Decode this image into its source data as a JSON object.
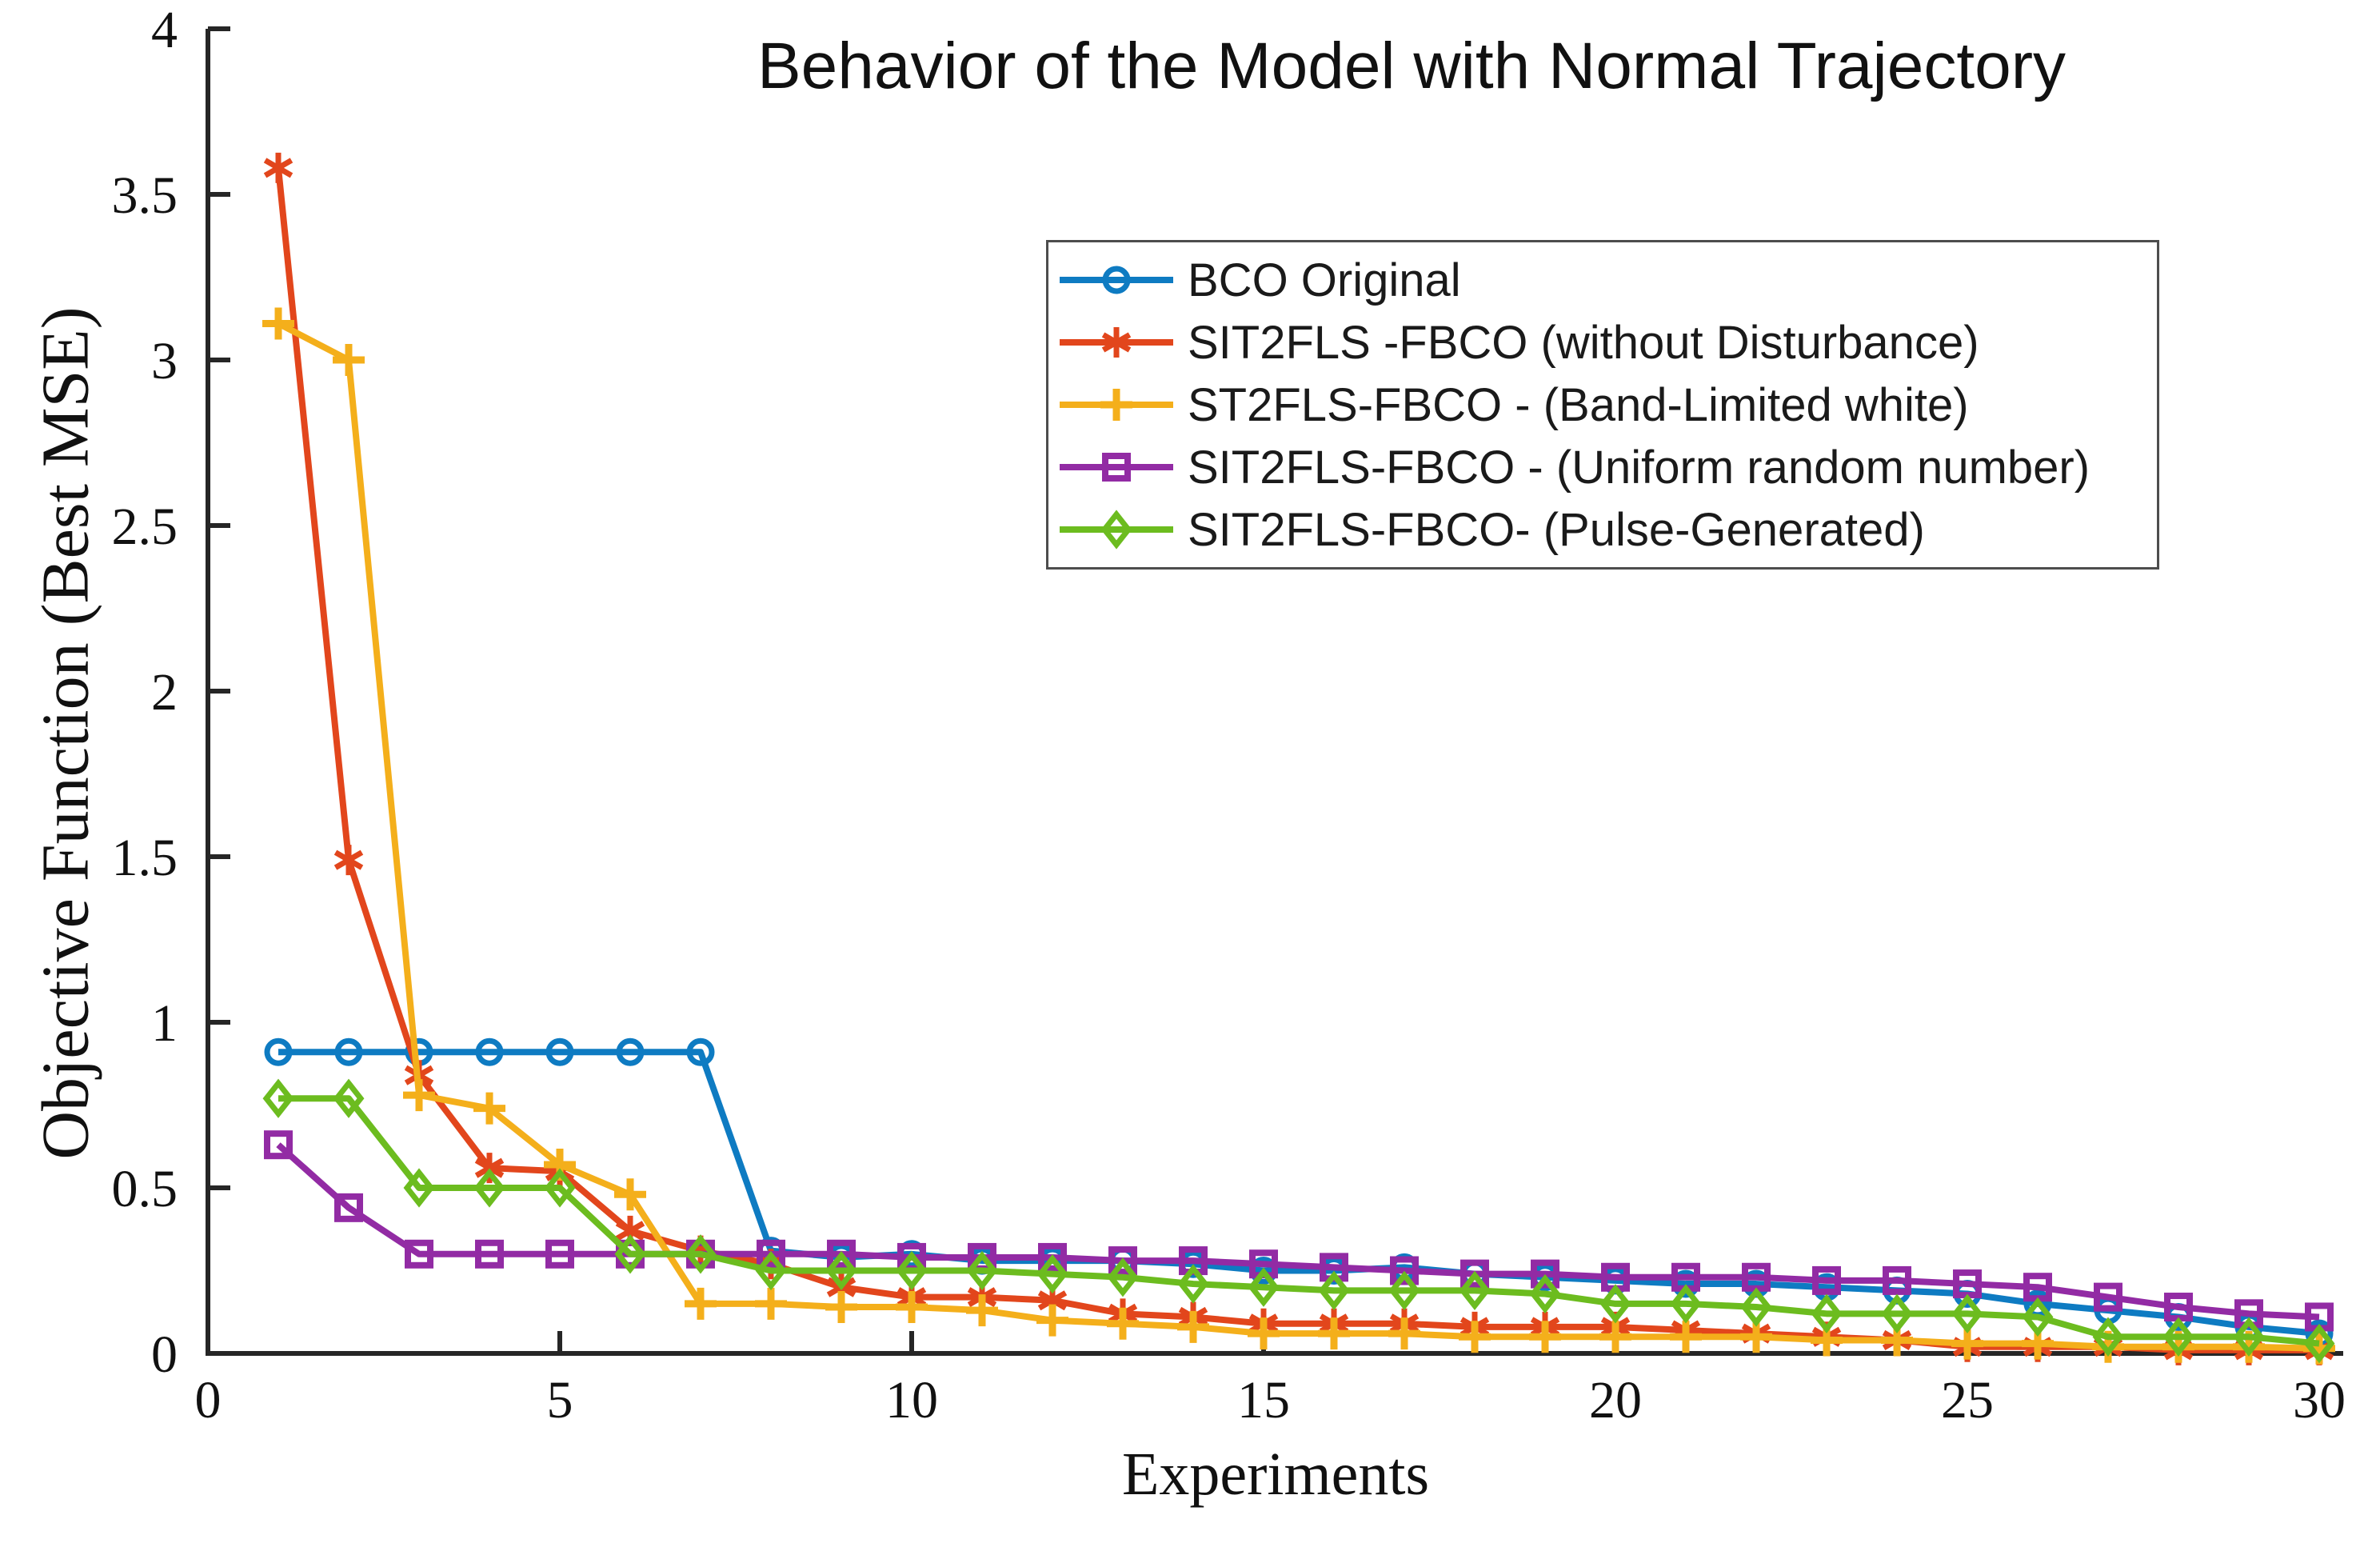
{
  "chart_data": {
    "type": "line",
    "title": "Behavior of the Model with Normal Trajectory",
    "xlabel": "Experiments",
    "ylabel": "Objective Function (Best MSE)",
    "xlim": [
      0,
      30
    ],
    "ylim": [
      0,
      4
    ],
    "x_ticks": [
      0,
      5,
      10,
      15,
      20,
      25,
      30
    ],
    "y_ticks": [
      0,
      0.5,
      1,
      1.5,
      2,
      2.5,
      3,
      3.5,
      4
    ],
    "grid": false,
    "legend_position": "upper-right-inside",
    "axis_color": "#262626",
    "x": [
      1,
      2,
      3,
      4,
      5,
      6,
      7,
      8,
      9,
      10,
      11,
      12,
      13,
      14,
      15,
      16,
      17,
      18,
      19,
      20,
      21,
      22,
      23,
      24,
      25,
      26,
      27,
      28,
      29,
      30
    ],
    "series": [
      {
        "name": "BCO Original",
        "color": "#0e7bc2",
        "marker": "circle",
        "values": [
          0.91,
          0.91,
          0.91,
          0.91,
          0.91,
          0.91,
          0.91,
          0.31,
          0.29,
          0.3,
          0.28,
          0.28,
          0.28,
          0.27,
          0.25,
          0.25,
          0.26,
          0.24,
          0.23,
          0.22,
          0.21,
          0.21,
          0.2,
          0.19,
          0.18,
          0.15,
          0.13,
          0.11,
          0.08,
          0.06
        ]
      },
      {
        "name": "SIT2FLS -FBCO (without Disturbance)",
        "color": "#e2461c",
        "marker": "asterisk",
        "values": [
          3.58,
          1.49,
          0.84,
          0.56,
          0.55,
          0.37,
          0.31,
          0.27,
          0.2,
          0.17,
          0.17,
          0.16,
          0.12,
          0.11,
          0.09,
          0.09,
          0.09,
          0.08,
          0.08,
          0.08,
          0.07,
          0.06,
          0.05,
          0.04,
          0.02,
          0.02,
          0.02,
          0.01,
          0.01,
          0.01
        ]
      },
      {
        "name": "ST2FLS-FBCO - (Band-Limited white)",
        "color": "#f4af1b",
        "marker": "plus",
        "values": [
          3.11,
          3.0,
          0.78,
          0.74,
          0.57,
          0.48,
          0.15,
          0.15,
          0.14,
          0.14,
          0.13,
          0.1,
          0.09,
          0.08,
          0.06,
          0.06,
          0.06,
          0.05,
          0.05,
          0.05,
          0.05,
          0.05,
          0.04,
          0.04,
          0.03,
          0.03,
          0.02,
          0.02,
          0.02,
          0.015
        ]
      },
      {
        "name": "SIT2FLS-FBCO - (Uniform random number)",
        "color": "#922ba4",
        "marker": "square",
        "values": [
          0.63,
          0.44,
          0.3,
          0.3,
          0.3,
          0.3,
          0.3,
          0.3,
          0.3,
          0.29,
          0.29,
          0.29,
          0.28,
          0.28,
          0.27,
          0.26,
          0.25,
          0.24,
          0.24,
          0.23,
          0.23,
          0.23,
          0.22,
          0.22,
          0.21,
          0.2,
          0.17,
          0.14,
          0.12,
          0.11
        ]
      },
      {
        "name": "SIT2FLS-FBCO- (Pulse-Generated)",
        "color": "#6cbc1f",
        "marker": "diamond",
        "values": [
          0.77,
          0.77,
          0.5,
          0.5,
          0.5,
          0.3,
          0.3,
          0.25,
          0.25,
          0.25,
          0.25,
          0.24,
          0.23,
          0.21,
          0.2,
          0.19,
          0.19,
          0.19,
          0.18,
          0.15,
          0.15,
          0.14,
          0.12,
          0.12,
          0.12,
          0.11,
          0.05,
          0.05,
          0.05,
          0.03
        ]
      }
    ]
  }
}
